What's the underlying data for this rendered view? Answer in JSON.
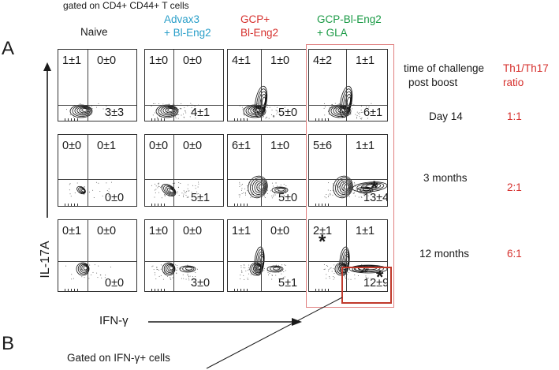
{
  "gate_label": "gated on CD4+ CD44+ T cells",
  "panel_letters": [
    "A",
    "B"
  ],
  "columns": [
    {
      "lines": [
        "Naive"
      ],
      "color": "#1a1a1a"
    },
    {
      "lines": [
        "Advax3",
        "+ Bl-Eng2"
      ],
      "color": "#2a9fc9"
    },
    {
      "lines": [
        "GCP+",
        "Bl-Eng2"
      ],
      "color": "#d6302d"
    },
    {
      "lines": [
        "GCP-Bl-Eng2",
        "+ GLA"
      ],
      "color": "#1a9a45"
    }
  ],
  "y_axis_label": "IL-17A",
  "x_axis_label": "IFN-γ",
  "time_header": [
    "time of challenge",
    "post boost"
  ],
  "ratio_header": [
    "Th1/Th17",
    "ratio"
  ],
  "rows": [
    {
      "time": "Day 14",
      "ratio": "1:1",
      "cells": [
        {
          "ul": "1±1",
          "ur": "0±0",
          "lr": "3±3"
        },
        {
          "ul": "1±0",
          "ur": "0±0",
          "lr": "4±1"
        },
        {
          "ul": "4±1",
          "ur": "1±0",
          "lr": "5±0"
        },
        {
          "ul": "4±2",
          "ur": "1±1",
          "lr": "6±1"
        }
      ]
    },
    {
      "time": "3 months",
      "ratio": "2:1",
      "cells": [
        {
          "ul": "0±0",
          "ur": "0±1",
          "lr": "0±0"
        },
        {
          "ul": "0±0",
          "ur": "0±0",
          "lr": "5±1"
        },
        {
          "ul": "6±1",
          "ur": "1±0",
          "lr": "5±0"
        },
        {
          "ul": "5±6",
          "ur": "1±1",
          "lr": "13±4"
        }
      ]
    },
    {
      "time": "12 months",
      "ratio": "6:1",
      "cells": [
        {
          "ul": "0±1",
          "ur": "0±0",
          "lr": "0±0"
        },
        {
          "ul": "1±0",
          "ur": "0±0",
          "lr": "3±0"
        },
        {
          "ul": "1±1",
          "ur": "0±0",
          "lr": "5±1"
        },
        {
          "ul": "2±1",
          "ur": "1±1",
          "lr": "12±9"
        }
      ]
    }
  ],
  "significance_marker": "*",
  "callout_label": "Gated on IFN-γ+ cells",
  "colors": {
    "highlight_box": "#d9534f",
    "ratio_text": "#d6302d",
    "axis": "#1a1a1a"
  }
}
